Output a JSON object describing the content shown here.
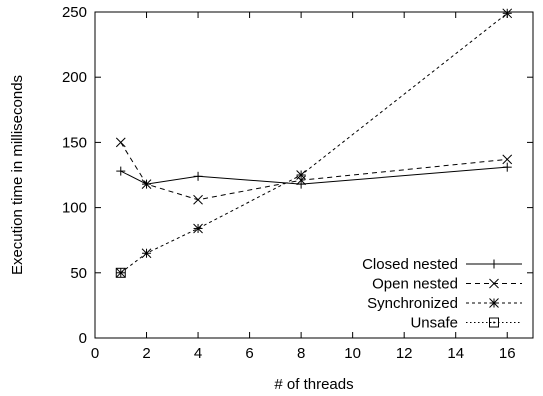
{
  "chart_data": {
    "type": "line",
    "xlabel": "# of threads",
    "ylabel": "Execution time in milliseconds",
    "xlim": [
      0,
      17
    ],
    "ylim": [
      0,
      250
    ],
    "xticks": [
      0,
      2,
      4,
      6,
      8,
      10,
      12,
      14,
      16
    ],
    "yticks": [
      0,
      50,
      100,
      150,
      200,
      250
    ],
    "grid": false,
    "legend_position": "bottom-right",
    "series": [
      {
        "name": "Closed nested",
        "marker": "plus",
        "dash": "solid",
        "x": [
          1,
          2,
          4,
          8,
          16
        ],
        "y": [
          128,
          118,
          124,
          118,
          131
        ]
      },
      {
        "name": "Open nested",
        "marker": "cross",
        "dash": "dashed",
        "x": [
          1,
          2,
          4,
          8,
          16
        ],
        "y": [
          150,
          118,
          106,
          121,
          137
        ]
      },
      {
        "name": "Synchronized",
        "marker": "star",
        "dash": "dashdot",
        "x": [
          1,
          2,
          4,
          8,
          16
        ],
        "y": [
          50,
          65,
          84,
          125,
          249
        ]
      },
      {
        "name": "Unsafe",
        "marker": "boxdot",
        "dash": "dotted",
        "x": [
          1
        ],
        "y": [
          50
        ]
      }
    ]
  }
}
